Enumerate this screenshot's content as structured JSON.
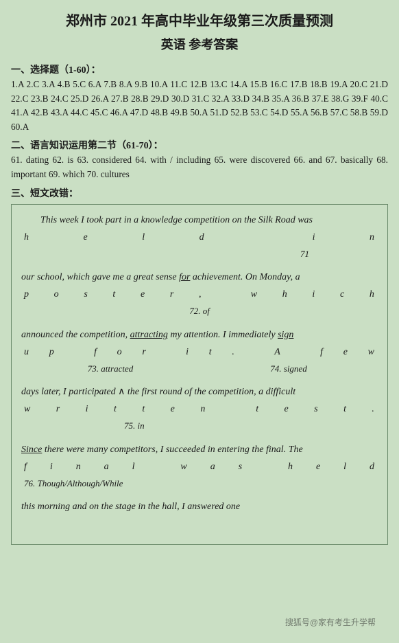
{
  "title": "郑州市 2021 年高中毕业年级第三次质量预测",
  "subtitle": "英语 参考答案",
  "section1": {
    "head": "一、选择题（1-60）：",
    "body": "1.A 2.C 3.A 4.B 5.C 6.A 7.B 8.A 9.B 10.A 11.C 12.B 13.C 14.A 15.B 16.C 17.B 18.B 19.A 20.C 21.D 22.C 23.B 24.C 25.D 26.A 27.B 28.B 29.D 30.D 31.C 32.A 33.D 34.B 35.A 36.B 37.E 38.G 39.F 40.C 41.A 42.B 43.A 44.C 45.C 46.A 47.D 48.B 49.B 50.A 51.D 52.B 53.C 54.D 55.A 56.B 57.C 58.B 59.D 60.A"
  },
  "section2": {
    "head": "二、语言知识运用第二节（61-70）：",
    "body": "61. dating 62. is 63. considered 64. with / including 65. were discovered 66. and 67. basically 68. important 69. which 70. cultures"
  },
  "section3": {
    "head": "三、短文改错："
  },
  "essay": {
    "l1a": "This week I took part in a knowledge competition on the Silk Road was",
    "l1b": "held in",
    "c71": "71",
    "l2a_pre": "our school, which gave me a great sense ",
    "l2a_u": "for",
    "l2a_post": " achievement. On Monday, a",
    "l2b": "poster, which",
    "c72": "72. of",
    "l3a_pre": "announced the competition, ",
    "l3a_u": "attracting",
    "l3a_mid": " my attention. I immediately ",
    "l3a_u2": "sign",
    "l3b": "up for it. A few",
    "c73": "73. attracted",
    "c74": "74. signed",
    "l4a_pre": "days later, I participated ",
    "caret": "∧",
    "l4a_post": " the first round of the competition, a difficult",
    "l4b": "written test.",
    "c75": "75. in",
    "l5_u": "Since",
    "l5_post": " there were many competitors, I succeeded in entering the final. The",
    "l5b": "final was held",
    "c76": "76. Though/Although/While",
    "l6": "this morning and on the stage in the hall, I answered one",
    "watermark": "搜狐号@家有考生升学帮"
  }
}
